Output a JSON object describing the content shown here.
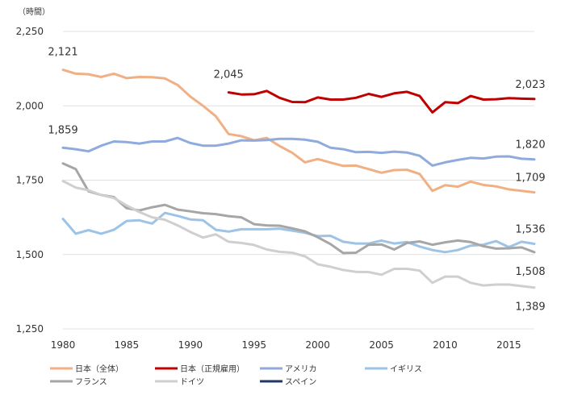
{
  "chart_data": {
    "type": "line",
    "unit_label": "（時間）",
    "xlim": [
      1980,
      2017
    ],
    "ylim": [
      1250,
      2250
    ],
    "y_ticks": [
      1250,
      1500,
      1750,
      2000,
      2250
    ],
    "y_tick_labels": [
      "1,250",
      "1,500",
      "1,750",
      "2,000",
      "2,250"
    ],
    "x_ticks": [
      1980,
      1985,
      1990,
      1995,
      2000,
      2005,
      2010,
      2015
    ],
    "x_tick_labels": [
      "1980",
      "1985",
      "1990",
      "1995",
      "2000",
      "2005",
      "2010",
      "2015"
    ],
    "grid": "horizontal",
    "legend_position": "bottom",
    "series": [
      {
        "name": "日本（全体）",
        "color": "#f0b084",
        "points": [
          [
            1980,
            2121
          ],
          [
            1981,
            2108
          ],
          [
            1982,
            2106
          ],
          [
            1983,
            2097
          ],
          [
            1984,
            2108
          ],
          [
            1985,
            2093
          ],
          [
            1986,
            2097
          ],
          [
            1987,
            2096
          ],
          [
            1988,
            2092
          ],
          [
            1989,
            2070
          ],
          [
            1990,
            2031
          ],
          [
            1991,
            2000
          ],
          [
            1992,
            1965
          ],
          [
            1993,
            1905
          ],
          [
            1994,
            1898
          ],
          [
            1995,
            1884
          ],
          [
            1996,
            1892
          ],
          [
            1997,
            1865
          ],
          [
            1998,
            1842
          ],
          [
            1999,
            1810
          ],
          [
            2000,
            1821
          ],
          [
            2001,
            1809
          ],
          [
            2002,
            1798
          ],
          [
            2003,
            1799
          ],
          [
            2004,
            1787
          ],
          [
            2005,
            1775
          ],
          [
            2006,
            1784
          ],
          [
            2007,
            1785
          ],
          [
            2008,
            1771
          ],
          [
            2009,
            1714
          ],
          [
            2010,
            1733
          ],
          [
            2011,
            1728
          ],
          [
            2012,
            1745
          ],
          [
            2013,
            1734
          ],
          [
            2014,
            1729
          ],
          [
            2015,
            1719
          ],
          [
            2016,
            1714
          ],
          [
            2017,
            1709
          ]
        ]
      },
      {
        "name": "日本（正規雇用）",
        "color": "#c00000",
        "points": [
          [
            1993,
            2045
          ],
          [
            1994,
            2038
          ],
          [
            1995,
            2039
          ],
          [
            1996,
            2050
          ],
          [
            1997,
            2027
          ],
          [
            1998,
            2013
          ],
          [
            1999,
            2012
          ],
          [
            2000,
            2028
          ],
          [
            2001,
            2021
          ],
          [
            2002,
            2021
          ],
          [
            2003,
            2027
          ],
          [
            2004,
            2040
          ],
          [
            2005,
            2030
          ],
          [
            2006,
            2042
          ],
          [
            2007,
            2047
          ],
          [
            2008,
            2033
          ],
          [
            2009,
            1978
          ],
          [
            2010,
            2012
          ],
          [
            2011,
            2009
          ],
          [
            2012,
            2033
          ],
          [
            2013,
            2021
          ],
          [
            2014,
            2022
          ],
          [
            2015,
            2026
          ],
          [
            2016,
            2024
          ],
          [
            2017,
            2023
          ]
        ]
      },
      {
        "name": "アメリカ",
        "color": "#8faadc",
        "points": [
          [
            1980,
            1859
          ],
          [
            1981,
            1854
          ],
          [
            1982,
            1847
          ],
          [
            1983,
            1866
          ],
          [
            1984,
            1880
          ],
          [
            1985,
            1878
          ],
          [
            1986,
            1873
          ],
          [
            1987,
            1880
          ],
          [
            1988,
            1880
          ],
          [
            1989,
            1892
          ],
          [
            1990,
            1875
          ],
          [
            1991,
            1866
          ],
          [
            1992,
            1866
          ],
          [
            1993,
            1873
          ],
          [
            1994,
            1884
          ],
          [
            1995,
            1883
          ],
          [
            1996,
            1885
          ],
          [
            1997,
            1889
          ],
          [
            1998,
            1889
          ],
          [
            1999,
            1886
          ],
          [
            2000,
            1879
          ],
          [
            2001,
            1859
          ],
          [
            2002,
            1854
          ],
          [
            2003,
            1844
          ],
          [
            2004,
            1845
          ],
          [
            2005,
            1842
          ],
          [
            2006,
            1846
          ],
          [
            2007,
            1843
          ],
          [
            2008,
            1832
          ],
          [
            2009,
            1799
          ],
          [
            2010,
            1810
          ],
          [
            2011,
            1818
          ],
          [
            2012,
            1825
          ],
          [
            2013,
            1823
          ],
          [
            2014,
            1829
          ],
          [
            2015,
            1830
          ],
          [
            2016,
            1822
          ],
          [
            2017,
            1820
          ]
        ]
      },
      {
        "name": "イギリス",
        "color": "#9dc3e6",
        "points": [
          [
            1980,
            1620
          ],
          [
            1981,
            1570
          ],
          [
            1982,
            1582
          ],
          [
            1983,
            1570
          ],
          [
            1984,
            1583
          ],
          [
            1985,
            1613
          ],
          [
            1986,
            1615
          ],
          [
            1987,
            1604
          ],
          [
            1988,
            1640
          ],
          [
            1989,
            1630
          ],
          [
            1990,
            1618
          ],
          [
            1991,
            1615
          ],
          [
            1992,
            1583
          ],
          [
            1993,
            1577
          ],
          [
            1994,
            1585
          ],
          [
            1995,
            1585
          ],
          [
            1996,
            1585
          ],
          [
            1997,
            1587
          ],
          [
            1998,
            1580
          ],
          [
            1999,
            1573
          ],
          [
            2000,
            1562
          ],
          [
            2001,
            1563
          ],
          [
            2002,
            1543
          ],
          [
            2003,
            1537
          ],
          [
            2004,
            1537
          ],
          [
            2005,
            1547
          ],
          [
            2006,
            1537
          ],
          [
            2007,
            1542
          ],
          [
            2008,
            1527
          ],
          [
            2009,
            1515
          ],
          [
            2010,
            1508
          ],
          [
            2011,
            1515
          ],
          [
            2012,
            1530
          ],
          [
            2013,
            1533
          ],
          [
            2014,
            1545
          ],
          [
            2015,
            1525
          ],
          [
            2016,
            1543
          ],
          [
            2017,
            1536
          ]
        ]
      },
      {
        "name": "フランス",
        "color": "#a6a6a6",
        "points": [
          [
            1980,
            1806
          ],
          [
            1981,
            1787
          ],
          [
            1982,
            1713
          ],
          [
            1983,
            1700
          ],
          [
            1984,
            1693
          ],
          [
            1985,
            1656
          ],
          [
            1986,
            1648
          ],
          [
            1987,
            1659
          ],
          [
            1988,
            1667
          ],
          [
            1989,
            1651
          ],
          [
            1990,
            1645
          ],
          [
            1991,
            1639
          ],
          [
            1992,
            1636
          ],
          [
            1993,
            1629
          ],
          [
            1994,
            1625
          ],
          [
            1995,
            1602
          ],
          [
            1996,
            1598
          ],
          [
            1997,
            1597
          ],
          [
            1998,
            1588
          ],
          [
            1999,
            1578
          ],
          [
            2000,
            1558
          ],
          [
            2001,
            1535
          ],
          [
            2002,
            1505
          ],
          [
            2003,
            1506
          ],
          [
            2004,
            1533
          ],
          [
            2005,
            1534
          ],
          [
            2006,
            1517
          ],
          [
            2007,
            1539
          ],
          [
            2008,
            1544
          ],
          [
            2009,
            1533
          ],
          [
            2010,
            1541
          ],
          [
            2011,
            1547
          ],
          [
            2012,
            1542
          ],
          [
            2013,
            1528
          ],
          [
            2014,
            1520
          ],
          [
            2015,
            1521
          ],
          [
            2016,
            1524
          ],
          [
            2017,
            1508
          ]
        ]
      },
      {
        "name": "ドイツ",
        "color": "#d0cece",
        "points": [
          [
            1980,
            1747
          ],
          [
            1981,
            1725
          ],
          [
            1982,
            1716
          ],
          [
            1983,
            1700
          ],
          [
            1984,
            1690
          ],
          [
            1985,
            1665
          ],
          [
            1986,
            1643
          ],
          [
            1987,
            1625
          ],
          [
            1988,
            1617
          ],
          [
            1989,
            1598
          ],
          [
            1990,
            1576
          ],
          [
            1991,
            1557
          ],
          [
            1992,
            1568
          ],
          [
            1993,
            1543
          ],
          [
            1994,
            1539
          ],
          [
            1995,
            1532
          ],
          [
            1996,
            1517
          ],
          [
            1997,
            1509
          ],
          [
            1998,
            1506
          ],
          [
            1999,
            1494
          ],
          [
            2000,
            1467
          ],
          [
            2001,
            1459
          ],
          [
            2002,
            1448
          ],
          [
            2003,
            1442
          ],
          [
            2004,
            1441
          ],
          [
            2005,
            1432
          ],
          [
            2006,
            1452
          ],
          [
            2007,
            1452
          ],
          [
            2008,
            1446
          ],
          [
            2009,
            1405
          ],
          [
            2010,
            1426
          ],
          [
            2011,
            1426
          ],
          [
            2012,
            1405
          ],
          [
            2013,
            1396
          ],
          [
            2014,
            1399
          ],
          [
            2015,
            1399
          ],
          [
            2016,
            1394
          ],
          [
            2017,
            1389
          ]
        ]
      },
      {
        "name": "スペイン",
        "color": "#203864",
        "points": []
      }
    ],
    "annotations": [
      {
        "text": "2,121",
        "x": 1980,
        "y": 2121,
        "position": "above"
      },
      {
        "text": "2,045",
        "x": 1993,
        "y": 2045,
        "position": "above"
      },
      {
        "text": "1,859",
        "x": 1980,
        "y": 1859,
        "position": "above"
      },
      {
        "text": "2,023",
        "x": 2017,
        "y": 2023,
        "position": "above-end"
      },
      {
        "text": "1,820",
        "x": 2017,
        "y": 1820,
        "position": "above-end"
      },
      {
        "text": "1,709",
        "x": 2017,
        "y": 1709,
        "position": "above-end"
      },
      {
        "text": "1,536",
        "x": 2017,
        "y": 1536,
        "position": "above-end"
      },
      {
        "text": "1,508",
        "x": 2017,
        "y": 1508,
        "position": "below-end"
      },
      {
        "text": "1,389",
        "x": 2017,
        "y": 1389,
        "position": "below-end"
      }
    ]
  }
}
